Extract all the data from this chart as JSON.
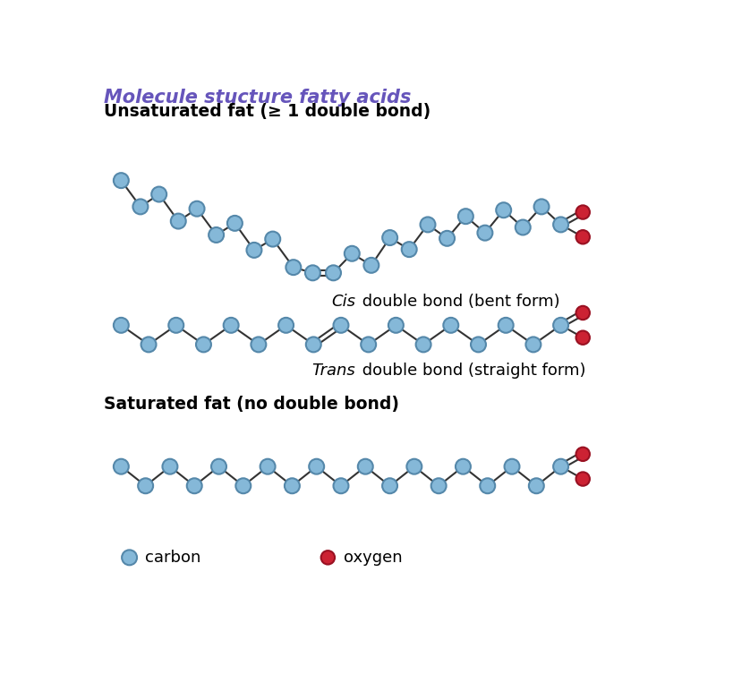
{
  "title": "Molecule stucture fatty acids",
  "title_color": "#6655bb",
  "bg_color": "#ffffff",
  "carbon_color": "#85b8d8",
  "carbon_edge_color": "#5588aa",
  "oxygen_color": "#cc2233",
  "oxygen_edge_color": "#991122",
  "unsaturated_label": "Unsaturated fat (≥ 1 double bond)",
  "cis_label_italic": "Cis",
  "cis_label_rest": " double bond (bent form)",
  "trans_label_italic": "Trans",
  "trans_label_rest": " double bond (straight form)",
  "saturated_label": "Saturated fat (no double bond)",
  "legend_carbon": "carbon",
  "legend_oxygen": "oxygen",
  "carbon_r": 11,
  "oxygen_r": 10
}
